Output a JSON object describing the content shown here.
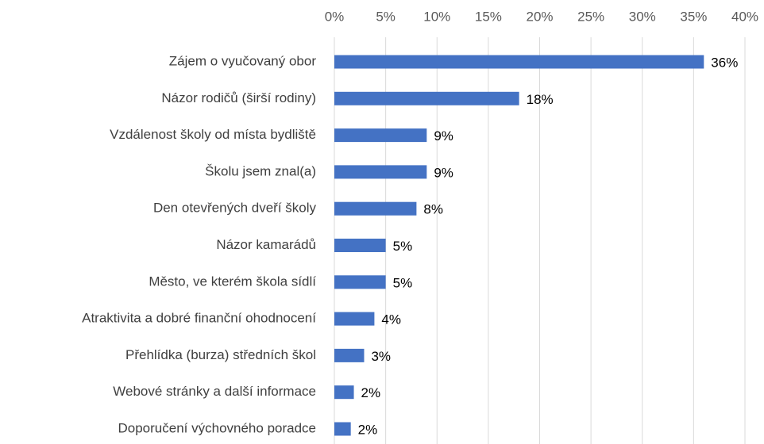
{
  "chart_data": {
    "type": "hbar",
    "categories": [
      "Zájem o vyučovaný obor",
      "Názor rodičů (širší rodiny)",
      "Vzdálenost školy od místa bydliště",
      "Školu jsem znal(a)",
      "Den otevřených dveří školy",
      "Názor kamarádů",
      "Město, ve kterém škola sídlí",
      "Atraktivita a dobré finanční ohodnocení",
      "Přehlídka (burza) středních škol",
      "Webové stránky a další informace",
      "Doporučení výchovného poradce"
    ],
    "values": [
      36,
      18,
      9,
      9,
      8,
      5,
      5,
      3.9,
      2.9,
      1.9,
      1.6
    ],
    "value_labels": [
      "36%",
      "18%",
      "9%",
      "9%",
      "8%",
      "5%",
      "5%",
      "4%",
      "3%",
      "2%",
      "2%"
    ],
    "color": "#4472c4",
    "xlim": [
      0,
      40
    ],
    "xticks": [
      {
        "value": 0,
        "label": "0%"
      },
      {
        "value": 5,
        "label": "5%"
      },
      {
        "value": 10,
        "label": "10%"
      },
      {
        "value": 15,
        "label": "15%"
      },
      {
        "value": 20,
        "label": "20%"
      },
      {
        "value": 25,
        "label": "25%"
      },
      {
        "value": 30,
        "label": "30%"
      },
      {
        "value": 35,
        "label": "35%"
      },
      {
        "value": 40,
        "label": "40%"
      }
    ],
    "grid": true
  }
}
